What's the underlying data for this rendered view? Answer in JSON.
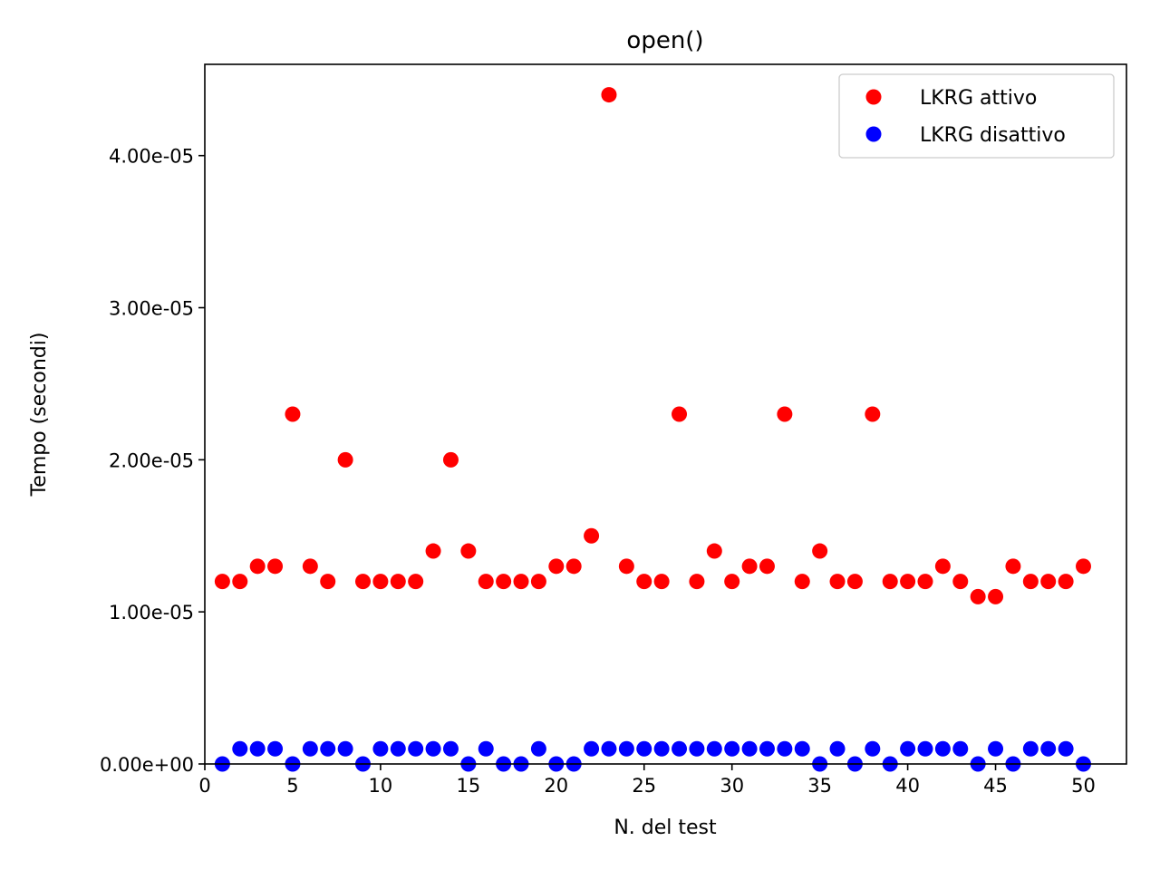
{
  "chart_data": {
    "type": "scatter",
    "title": "open()",
    "xlabel": "N. del test",
    "ylabel": "Tempo (secondi)",
    "xlim": [
      0,
      52.45
    ],
    "ylim": [
      0,
      4.6e-05
    ],
    "xticks": [
      0,
      5,
      10,
      15,
      20,
      25,
      30,
      35,
      40,
      45,
      50
    ],
    "xtick_labels": [
      "0",
      "5",
      "10",
      "15",
      "20",
      "25",
      "30",
      "35",
      "40",
      "45",
      "50"
    ],
    "yticks": [
      0,
      1e-05,
      2e-05,
      3e-05,
      4e-05
    ],
    "ytick_labels": [
      "0.00e+00",
      "1.00e-05",
      "2.00e-05",
      "3.00e-05",
      "4.00e-05"
    ],
    "grid": false,
    "legend_position": "top-right",
    "x": [
      1,
      2,
      3,
      4,
      5,
      6,
      7,
      8,
      9,
      10,
      11,
      12,
      13,
      14,
      15,
      16,
      17,
      18,
      19,
      20,
      21,
      22,
      23,
      24,
      25,
      26,
      27,
      28,
      29,
      30,
      31,
      32,
      33,
      34,
      35,
      36,
      37,
      38,
      39,
      40,
      41,
      42,
      43,
      44,
      45,
      46,
      47,
      48,
      49,
      50
    ],
    "series": [
      {
        "name": "LKRG attivo",
        "color": "#ff0000",
        "values": [
          1.2e-05,
          1.2e-05,
          1.3e-05,
          1.3e-05,
          2.3e-05,
          1.3e-05,
          1.2e-05,
          2e-05,
          1.2e-05,
          1.2e-05,
          1.2e-05,
          1.2e-05,
          1.4e-05,
          2e-05,
          1.4e-05,
          1.2e-05,
          1.2e-05,
          1.2e-05,
          1.2e-05,
          1.3e-05,
          1.3e-05,
          1.5e-05,
          4.4e-05,
          1.3e-05,
          1.2e-05,
          1.2e-05,
          2.3e-05,
          1.2e-05,
          1.4e-05,
          1.2e-05,
          1.3e-05,
          1.3e-05,
          2.3e-05,
          1.2e-05,
          1.4e-05,
          1.2e-05,
          1.2e-05,
          2.3e-05,
          1.2e-05,
          1.2e-05,
          1.2e-05,
          1.3e-05,
          1.2e-05,
          1.1e-05,
          1.1e-05,
          1.3e-05,
          1.2e-05,
          1.2e-05,
          1.2e-05,
          1.3e-05
        ]
      },
      {
        "name": "LKRG disattivo",
        "color": "#0000ff",
        "values": [
          0,
          1e-06,
          1e-06,
          1e-06,
          0,
          1e-06,
          1e-06,
          1e-06,
          0,
          1e-06,
          1e-06,
          1e-06,
          1e-06,
          1e-06,
          0,
          1e-06,
          0,
          0,
          1e-06,
          0,
          0,
          1e-06,
          1e-06,
          1e-06,
          1e-06,
          1e-06,
          1e-06,
          1e-06,
          1e-06,
          1e-06,
          1e-06,
          1e-06,
          1e-06,
          1e-06,
          0,
          1e-06,
          0,
          1e-06,
          0,
          1e-06,
          1e-06,
          1e-06,
          1e-06,
          0,
          1e-06,
          0,
          1e-06,
          1e-06,
          1e-06,
          0
        ]
      }
    ]
  }
}
